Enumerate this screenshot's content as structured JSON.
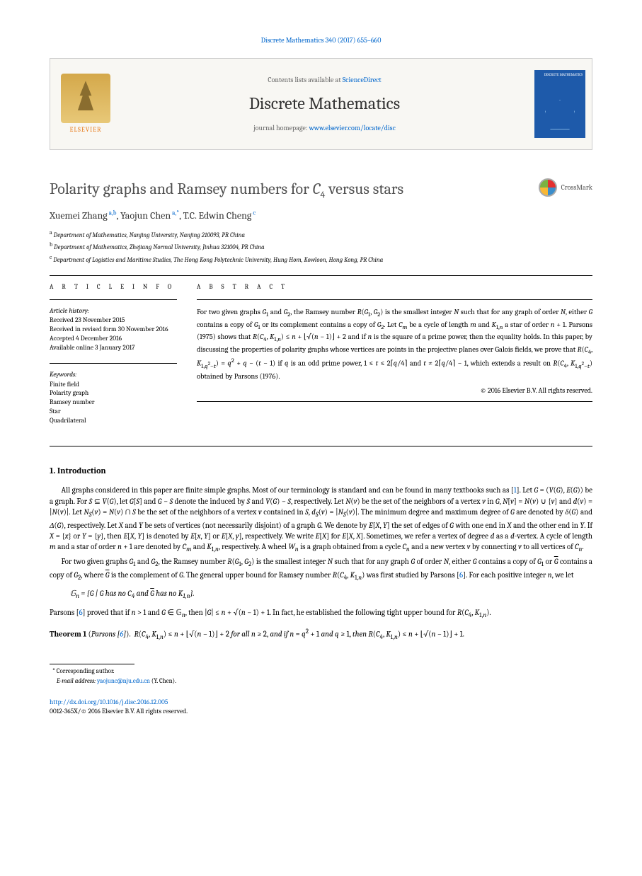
{
  "journal_ref": "Discrete Mathematics 340 (2017) 655–660",
  "header": {
    "contents_prefix": "Contents lists available at ",
    "contents_link": "ScienceDirect",
    "journal_name": "Discrete Mathematics",
    "homepage_prefix": "journal homepage: ",
    "homepage_link": "www.elsevier.com/locate/disc",
    "logo_label": "ELSEVIER",
    "cover_text": "DISCRETE MATHEMATICS"
  },
  "title_html": "Polarity graphs and Ramsey numbers for <i>C</i><sub>4</sub> versus stars",
  "crossmark": "CrossMark",
  "authors_html": "Xuemei Zhang<sup> a,b</sup>, Yaojun Chen<sup> a,*</sup>, T.C. Edwin Cheng<sup> c</sup>",
  "affiliations": [
    {
      "sup": "a",
      "text": "Department of Mathematics, Nanjing University, Nanjing 210093, PR China"
    },
    {
      "sup": "b",
      "text": "Department of Mathematics, Zhejiang Normal University, Jinhua 321004, PR China"
    },
    {
      "sup": "c",
      "text": "Department of Logistics and Maritime Studies, The Hong Kong Polytechnic University, Hung Hom, Kowloon, Hong Kong, PR China"
    }
  ],
  "article_info": {
    "head": "A R T I C L E   I N F O",
    "history_head": "Article history:",
    "history": [
      "Received 23 November 2015",
      "Received in revised form 30 November 2016",
      "Accepted 4 December 2016",
      "Available online 3 January 2017"
    ],
    "keywords_head": "Keywords:",
    "keywords": [
      "Finite field",
      "Polarity graph",
      "Ramsey number",
      "Star",
      "Quadrilateral"
    ]
  },
  "abstract": {
    "head": "A B S T R A C T",
    "text_html": "For two given graphs <i>G</i><sub>1</sub> and <i>G</i><sub>2</sub>, the Ramsey number <i>R</i>(<i>G</i><sub>1</sub>, <i>G</i><sub>2</sub>) is the smallest integer <i>N</i> such that for any graph of order <i>N</i>, either <i>G</i> contains a copy of <i>G</i><sub>1</sub> or its complement contains a copy of <i>G</i><sub>2</sub>. Let <i>C<sub>m</sub></i> be a cycle of length <i>m</i> and <i>K</i><sub>1,<i>n</i></sub> a star of order <i>n</i> + 1. Parsons (1975) shows that <i>R</i>(<i>C</i><sub>4</sub>, <i>K</i><sub>1,<i>n</i></sub>) ≤ <i>n</i> + ⌊√(<i>n</i> − 1)⌋ + 2 and if <i>n</i> is the square of a prime power, then the equality holds. In this paper, by discussing the properties of polarity graphs whose vertices are points in the projective planes over Galois fields, we prove that <i>R</i>(<i>C</i><sub>4</sub>, <i>K</i><sub>1,<i>q</i><sup>2</sup>−<i>t</i></sub>) = <i>q</i><sup>2</sup> + <i>q</i> − (<i>t</i> − 1) if <i>q</i> is an odd prime power, 1 ≤ <i>t</i> ≤ 2⌈<i>q</i>/4⌉ and <i>t</i> ≠ 2⌈<i>q</i>/4⌉ − 1, which extends a result on <i>R</i>(<i>C</i><sub>4</sub>, <i>K</i><sub>1,<i>q</i><sup>2</sup>−<i>t</i></sub>) obtained by Parsons (1976).",
    "copyright": "© 2016 Elsevier B.V. All rights reserved."
  },
  "section1_head": "1. Introduction",
  "para1_html": "All graphs considered in this paper are finite simple graphs. Most of our terminology is standard and can be found in many textbooks such as [<span class=\"ref\">1</span>]. Let <i>G</i> = (<i>V</i>(<i>G</i>), <i>E</i>(<i>G</i>)) be a graph. For <i>S</i> ⊆ <i>V</i>(<i>G</i>), let <i>G</i>[<i>S</i>] and <i>G</i> − <i>S</i> denote the induced by <i>S</i> and <i>V</i>(<i>G</i>) − <i>S</i>, respectively. Let <i>N</i>(<i>v</i>) be the set of the neighbors of a vertex <i>v</i> in <i>G</i>, <i>N</i>[<i>v</i>] = <i>N</i>(<i>v</i>) ∪ {<i>v</i>} and <i>d</i>(<i>v</i>) = |<i>N</i>(<i>v</i>)|. Let <i>N<sub>S</sub></i>(<i>v</i>) = <i>N</i>(<i>v</i>) ∩ <i>S</i> be the set of the neighbors of a vertex <i>v</i> contained in <i>S</i>, <i>d<sub>S</sub></i>(<i>v</i>) = |<i>N<sub>S</sub></i>(<i>v</i>)|. The minimum degree and maximum degree of <i>G</i> are denoted by <i>δ</i>(<i>G</i>) and <i>Δ</i>(<i>G</i>), respectively. Let <i>X</i> and <i>Y</i> be sets of vertices (not necessarily disjoint) of a graph <i>G</i>. We denote by <i>E</i>[<i>X</i>, <i>Y</i>] the set of edges of <i>G</i> with one end in <i>X</i> and the other end in <i>Y</i>. If <i>X</i> = {<i>x</i>} or <i>Y</i> = {<i>y</i>}, then <i>E</i>[<i>X</i>, <i>Y</i>] is denoted by <i>E</i>[<i>x</i>, <i>Y</i>] or <i>E</i>[<i>X</i>, <i>y</i>], respectively. We write <i>E</i>[<i>X</i>] for <i>E</i>[<i>X</i>, <i>X</i>]. Sometimes, we refer a vertex of degree <i>d</i> as a <i>d</i>-vertex. A cycle of length <i>m</i> and a star of order <i>n</i> + 1 are denoted by <i>C<sub>m</sub></i> and <i>K</i><sub>1,<i>n</i></sub>, respectively. A wheel <i>W<sub>n</sub></i> is a graph obtained from a cycle <i>C<sub>n</sub></i> and a new vertex <i>v</i> by connecting <i>v</i> to all vertices of <i>C<sub>n</sub></i>.",
  "para2_html": "For two given graphs <i>G</i><sub>1</sub> and <i>G</i><sub>2</sub>, the Ramsey number <i>R</i>(<i>G</i><sub>1</sub>, <i>G</i><sub>2</sub>) is the smallest integer <i>N</i> such that for any graph <i>G</i> of order <i>N</i>, either <i>G</i> contains a copy of <i>G</i><sub>1</sub> or <span style=\"text-decoration:overline\"><i>G</i></span> contains a copy of <i>G</i><sub>2</sub>, where <span style=\"text-decoration:overline\"><i>G</i></span> is the complement of <i>G</i>. The general upper bound for Ramsey number <i>R</i>(<i>C</i><sub>4</sub>, <i>K</i><sub>1,<i>n</i></sub>) was first studied by Parsons [<span class=\"ref\">6</span>]. For each positive integer <i>n</i>, we let",
  "eq1_html": "𝔾<sub><i>n</i></sub> = {<i>G</i> | <i>G</i> has no <i>C</i><sub>4</sub> and <span style=\"text-decoration:overline\"><i>G</i></span> has no <i>K</i><sub>1,<i>n</i></sub>}.",
  "para3_html": "Parsons [<span class=\"ref\">6</span>] proved that if <i>n</i> &gt; 1 and <i>G</i> ∈ 𝔾<sub><i>n</i></sub>, then |<i>G</i>| ≤ <i>n</i> + √(<i>n</i> − 1) + 1. In fact, he established the following tight upper bound for <i>R</i>(<i>C</i><sub>4</sub>, <i>K</i><sub>1,<i>n</i></sub>).",
  "theorem1_html": "<span class=\"label\">Theorem 1</span> (<span class=\"src\">Parsons [<span class=\"ref\">6</span>]</span>).&nbsp;&nbsp;<i>R</i>(<i>C</i><sub>4</sub>, <i>K</i><sub>1,<i>n</i></sub>) ≤ <i>n</i> + ⌊√(<i>n</i> − 1)⌋ + 2 <i>for all n</i> ≥ 2, <i>and if n</i> = <i>q</i><sup>2</sup> + 1 <i>and q</i> ≥ 1, <i>then R</i>(<i>C</i><sub>4</sub>, <i>K</i><sub>1,<i>n</i></sub>) ≤ <i>n</i> + ⌊√(<i>n</i> − 1)⌋ + 1.",
  "footnote": {
    "corr": "Corresponding author.",
    "email_label": "E-mail address:",
    "email": "yaojunc@nju.edu.cn",
    "email_suffix": "(Y. Chen)."
  },
  "doi": {
    "link": "http://dx.doi.org/10.1016/j.disc.2016.12.005",
    "issn_line": "0012-365X/© 2016 Elsevier B.V. All rights reserved."
  }
}
